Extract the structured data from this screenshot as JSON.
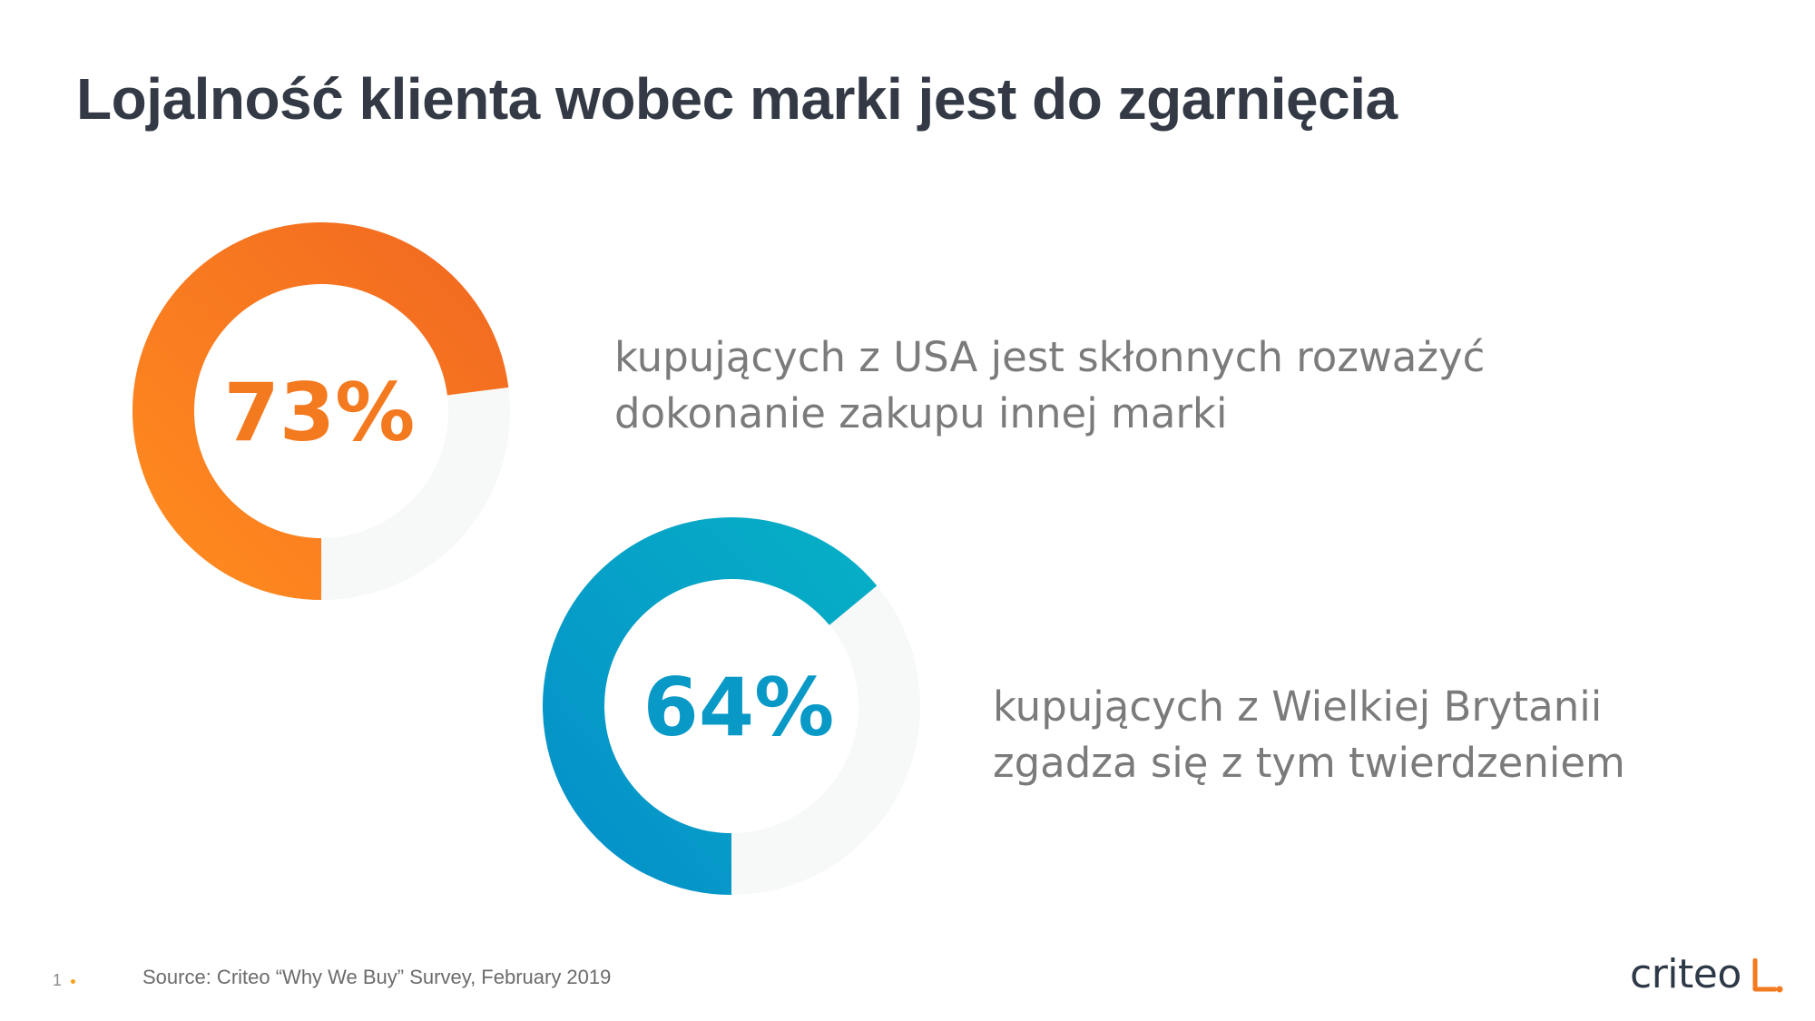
{
  "slide": {
    "title": "Lojalność klienta wobec marki jest do zgarnięcia",
    "source": "Source: Criteo “Why We Buy” Survey, February 2019",
    "page_number": "1",
    "logo_text": "criteo"
  },
  "chart_data": [
    {
      "type": "pie",
      "variant": "donut",
      "value": 73,
      "value_label": "73%",
      "description_lines": [
        "kupujących z USA jest skłonnych rozważyć",
        "dokonanie zakupu  innej marki"
      ],
      "colors": {
        "start": "#ff8a1f",
        "end": "#f26a21",
        "track": "#f7f8f8"
      }
    },
    {
      "type": "pie",
      "variant": "donut",
      "value": 64,
      "value_label": "64%",
      "description_lines": [
        "kupujących z Wielkiej Brytanii",
        "zgadza się z tym twierdzeniem"
      ],
      "colors": {
        "start": "#0591c9",
        "end": "#06aec6",
        "track": "#f7f8f8"
      }
    }
  ]
}
